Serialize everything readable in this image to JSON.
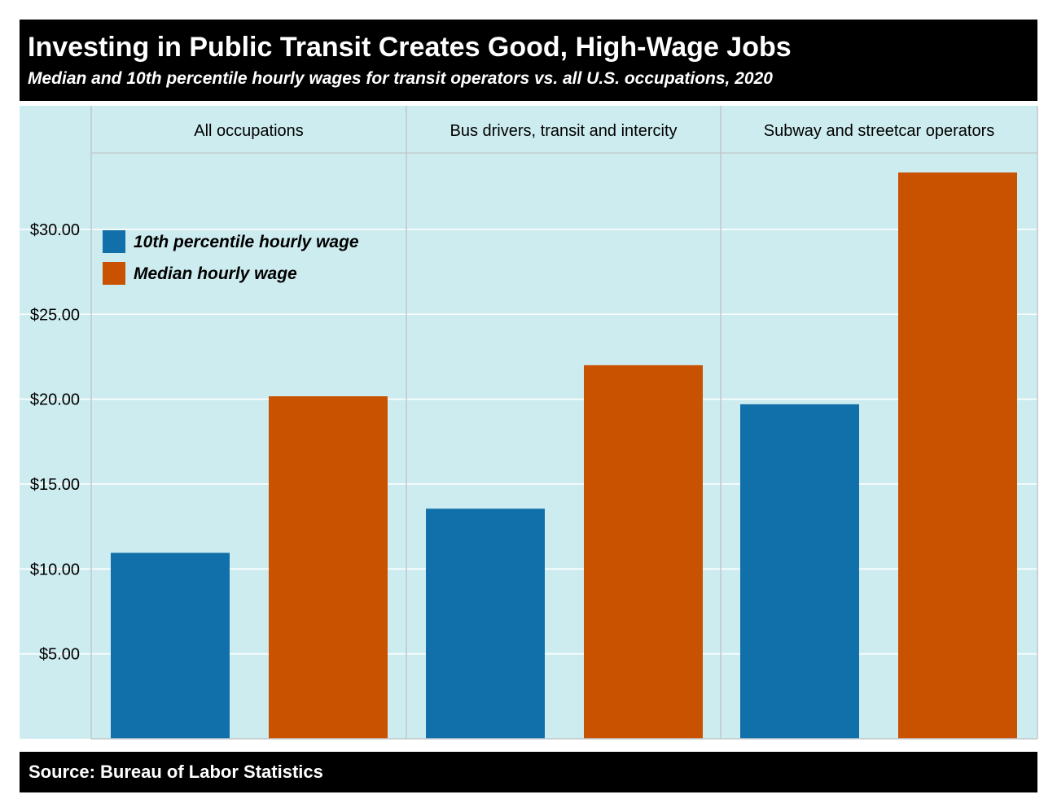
{
  "header": {
    "title": "Investing in Public Transit Creates Good, High-Wage Jobs",
    "subtitle": "Median and 10th percentile hourly wages for transit operators vs. all U.S. occupations, 2020"
  },
  "footer": {
    "source": "Source: Bureau of Labor Statistics"
  },
  "colors": {
    "panel_bg": "#cdecef",
    "grid": "#ffffff",
    "border": "#c2c7cc",
    "p10": "#1170aa",
    "median": "#c85200"
  },
  "chart_data": {
    "type": "bar",
    "facets": [
      "All occupations",
      "Bus drivers, transit and intercity",
      "Subway and streetcar operators"
    ],
    "series": [
      {
        "name": "10th percentile hourly wage",
        "values": [
          10.95,
          13.55,
          19.7
        ]
      },
      {
        "name": "Median hourly wage",
        "values": [
          20.17,
          22.0,
          33.35
        ]
      }
    ],
    "y_ticks": [
      {
        "value": 5,
        "label": "$5.00"
      },
      {
        "value": 10,
        "label": "$10.00"
      },
      {
        "value": 15,
        "label": "$15.00"
      },
      {
        "value": 20,
        "label": "$20.00"
      },
      {
        "value": 25,
        "label": "$25.00"
      },
      {
        "value": 30,
        "label": "$30.00"
      }
    ],
    "ylim": [
      0,
      34.5
    ],
    "legend_position": "top-left",
    "grid": true
  }
}
